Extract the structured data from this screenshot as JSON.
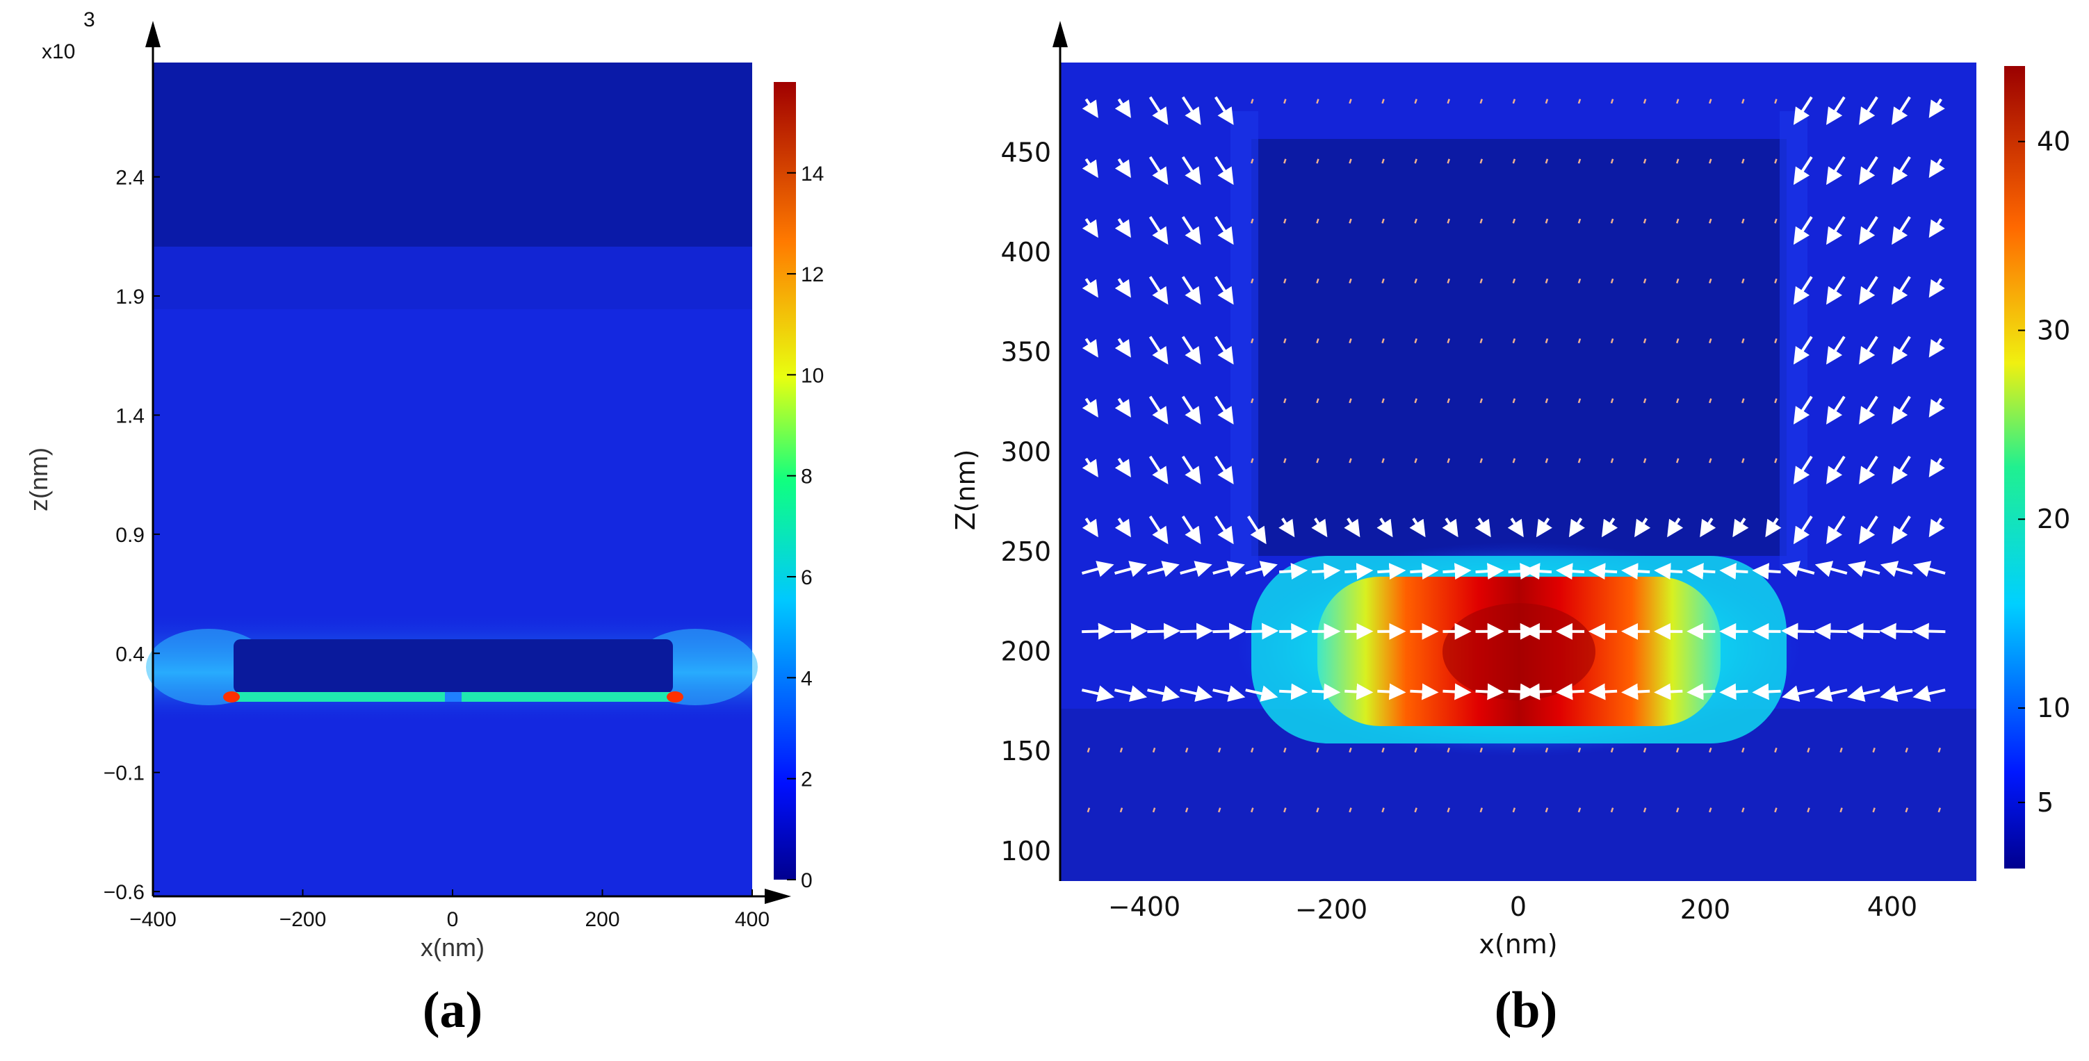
{
  "figure": {
    "colors": {
      "field_base": "#1020d8",
      "field_dark": "#0a1aa8",
      "arrow": "#ffffff"
    }
  },
  "chart_data": [
    {
      "type": "heatmap",
      "panel_label": "(a)",
      "title": "",
      "xlabel": "x(nm)",
      "ylabel": "z(nm)",
      "y_multiplier_label": "x10",
      "y_multiplier_exponent": "3",
      "x_ticks": [
        -400,
        -200,
        0,
        200,
        400
      ],
      "x_tick_labels": [
        "−400",
        "−200",
        "0",
        "200",
        "400"
      ],
      "xlim": [
        -400,
        400
      ],
      "y_ticks": [
        -0.6,
        -0.1,
        0.4,
        0.9,
        1.4,
        1.9,
        2.4
      ],
      "y_tick_labels": [
        "−0.6",
        "−0.1",
        "0.4",
        "0.9",
        "1.4",
        "1.9",
        "2.4"
      ],
      "ylim": [
        -0.62,
        2.88
      ],
      "colorbar": {
        "range": [
          0,
          15.8
        ],
        "ticks": [
          0,
          2,
          4,
          6,
          8,
          10,
          12,
          14
        ],
        "tick_labels": [
          "0",
          "2",
          "4",
          "6",
          "8",
          "10",
          "12",
          "14"
        ]
      },
      "regions": {
        "upper_layer_from": 2.1,
        "strip_x": [
          -295,
          295
        ],
        "strip_z": [
          0.25,
          0.45
        ]
      }
    },
    {
      "type": "heatmap",
      "panel_label": "(b)",
      "title": "",
      "xlabel": "x(nm)",
      "ylabel": "Z(nm)",
      "x_ticks": [
        -400,
        -200,
        0,
        200,
        400
      ],
      "x_tick_labels": [
        "−400",
        "−200",
        "0",
        "200",
        "400"
      ],
      "xlim": [
        -490,
        490
      ],
      "y_ticks": [
        100,
        150,
        200,
        250,
        300,
        350,
        400,
        450
      ],
      "y_tick_labels": [
        "100",
        "150",
        "200",
        "250",
        "300",
        "350",
        "400",
        "450"
      ],
      "ylim": [
        85,
        495
      ],
      "colorbar": {
        "range": [
          1.5,
          44
        ],
        "ticks": [
          5,
          10,
          20,
          30,
          40
        ],
        "tick_labels": [
          "5",
          "10",
          "20",
          "30",
          "40"
        ]
      },
      "hot_spot": {
        "x_range": [
          -280,
          280
        ],
        "z_range": [
          155,
          255
        ],
        "center_z": 207
      },
      "arrow_field": {
        "x_range": [
          -460,
          460
        ],
        "x_step": 35,
        "z_rows": [
          120,
          150,
          180,
          210,
          240,
          265,
          295,
          325,
          355,
          385,
          415,
          445,
          475
        ]
      }
    }
  ]
}
